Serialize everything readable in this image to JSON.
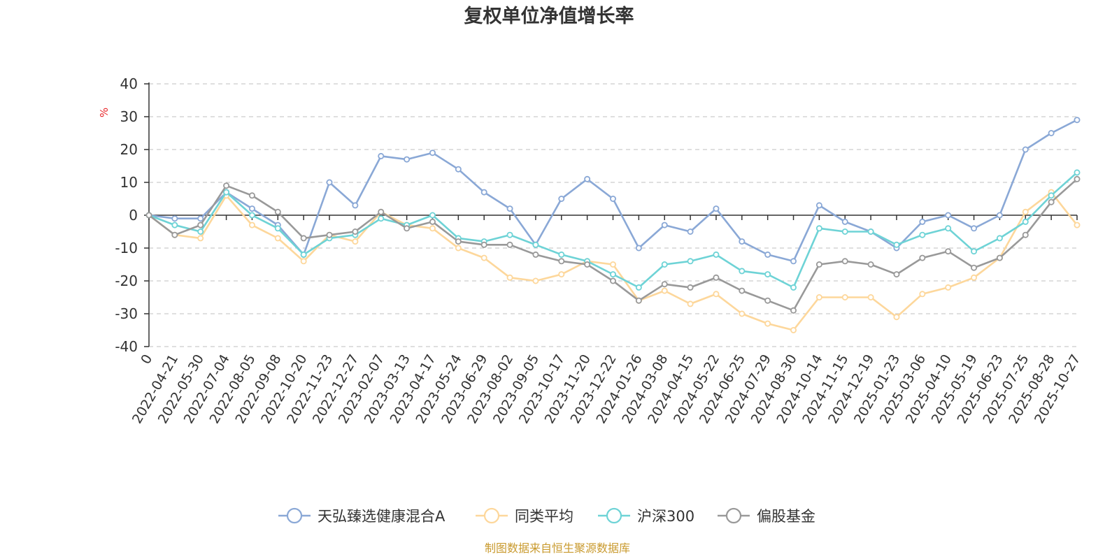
{
  "chart_data": {
    "type": "line",
    "title": "复权单位净值增长率",
    "ylabel": "%",
    "xlabel": "",
    "ylim": [
      -40,
      40
    ],
    "yticks": [
      40,
      30,
      20,
      10,
      0,
      -10,
      -20,
      -30,
      -40
    ],
    "categories": [
      "0",
      "2022-04-21",
      "2022-05-30",
      "2022-07-04",
      "2022-08-05",
      "2022-09-08",
      "2022-10-20",
      "2022-11-23",
      "2022-12-27",
      "2023-02-07",
      "2023-03-13",
      "2023-04-17",
      "2023-05-24",
      "2023-06-29",
      "2023-08-02",
      "2023-09-05",
      "2023-10-17",
      "2023-11-20",
      "2023-12-22",
      "2024-01-26",
      "2024-03-08",
      "2024-04-15",
      "2024-05-22",
      "2024-06-25",
      "2024-07-29",
      "2024-08-30",
      "2024-10-14",
      "2024-11-15",
      "2024-12-19",
      "2025-01-23",
      "2025-03-06",
      "2025-04-10",
      "2025-05-19",
      "2025-06-23",
      "2025-07-25",
      "2025-08-28",
      "2025-10-27"
    ],
    "series": [
      {
        "name": "天弘臻选健康混合A",
        "color": "#8aa8d6",
        "values": [
          0,
          -1,
          -1,
          7,
          2,
          -3,
          -12,
          10,
          3,
          18,
          17,
          19,
          14,
          7,
          2,
          -9,
          5,
          11,
          5,
          -10,
          -3,
          -5,
          2,
          -8,
          -12,
          -14,
          3,
          -2,
          -5,
          -10,
          -2,
          0,
          -4,
          0,
          20,
          25,
          29
        ]
      },
      {
        "name": "同类平均",
        "color": "#fdd79b",
        "values": [
          0,
          -6,
          -7,
          6,
          -3,
          -7,
          -14,
          -6,
          -8,
          1,
          -3,
          -4,
          -10,
          -13,
          -19,
          -20,
          -18,
          -14,
          -15,
          -26,
          -23,
          -27,
          -24,
          -30,
          -33,
          -35,
          -25,
          -25,
          -25,
          -31,
          -24,
          -22,
          -19,
          -13,
          1,
          7,
          -3
        ]
      },
      {
        "name": "沪深300",
        "color": "#6ed3d6",
        "values": [
          0,
          -3,
          -5,
          7,
          0,
          -4,
          -12,
          -7,
          -6,
          -1,
          -3,
          0,
          -7,
          -8,
          -6,
          -9,
          -12,
          -14,
          -18,
          -22,
          -15,
          -14,
          -12,
          -17,
          -18,
          -22,
          -4,
          -5,
          -5,
          -9,
          -6,
          -4,
          -11,
          -7,
          -2,
          6,
          13
        ]
      },
      {
        "name": "偏股基金",
        "color": "#999999",
        "values": [
          0,
          -6,
          -3,
          9,
          6,
          1,
          -7,
          -6,
          -5,
          1,
          -4,
          -2,
          -8,
          -9,
          -9,
          -12,
          -14,
          -15,
          -20,
          -26,
          -21,
          -22,
          -19,
          -23,
          -26,
          -29,
          -15,
          -14,
          -15,
          -18,
          -13,
          -11,
          -16,
          -13,
          -6,
          4,
          11
        ]
      }
    ],
    "legend": [
      "天弘臻选健康混合A",
      "同类平均",
      "沪深300",
      "偏股基金"
    ],
    "grid": true,
    "legend_position": "bottom-center"
  },
  "footer": {
    "source": "制图数据来自恒生聚源数据库"
  }
}
